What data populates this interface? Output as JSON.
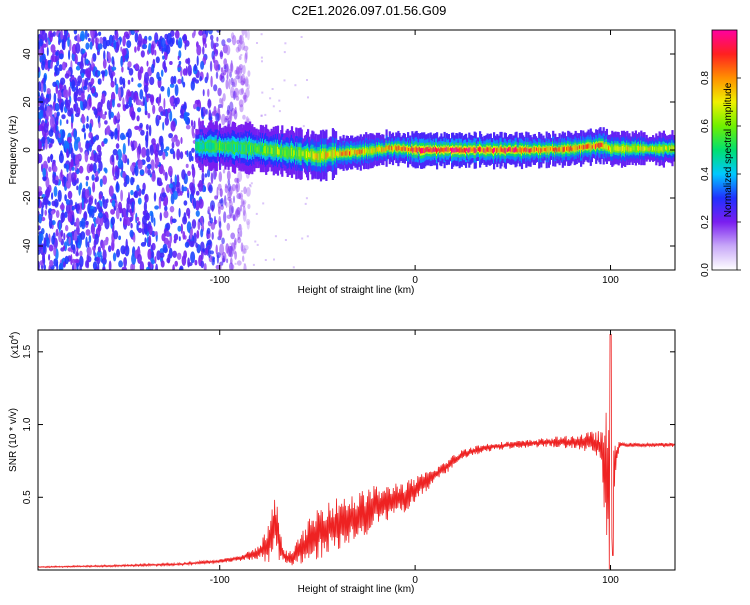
{
  "figure_title": "C2E1.2026.097.01.56.G09",
  "chart_data": [
    {
      "type": "heatmap",
      "title": "C2E1.2026.097.01.56.G09",
      "xlabel": "Height of straight line (km)",
      "ylabel": "Frequency (Hz)",
      "xlim": [
        -193,
        133
      ],
      "ylim": [
        -50,
        50
      ],
      "xticks": [
        -100,
        0,
        100
      ],
      "xtick_labels": [
        "-100",
        "0",
        "100"
      ],
      "yticks": [
        -40,
        -20,
        0,
        20,
        40
      ],
      "ytick_labels": [
        "-40",
        "-20",
        "0",
        "20",
        "40"
      ],
      "colorbar": {
        "label": "Normalized spectral amplitude",
        "range": [
          0,
          1
        ],
        "ticks": [
          0.0,
          0.2,
          0.4,
          0.6,
          0.8
        ],
        "tick_labels": [
          "0.0",
          "0.2",
          "0.4",
          "0.6",
          "0.8"
        ],
        "colors": [
          "#ffffff",
          "#c8a8f8",
          "#7a1ef0",
          "#2030ff",
          "#00c8ff",
          "#00e070",
          "#70f000",
          "#f0f000",
          "#ff9000",
          "#ff2020",
          "#ff00a0"
        ]
      },
      "ridge": {
        "x": [
          -112,
          -100,
          -90,
          -80,
          -70,
          -60,
          -50,
          -40,
          -30,
          -20,
          -10,
          0,
          20,
          40,
          60,
          80,
          95,
          100,
          133
        ],
        "frequency": [
          1.5,
          1.5,
          1.0,
          0.5,
          -0.5,
          -1.5,
          -2.5,
          -1.5,
          -1.0,
          0.0,
          1.0,
          0.0,
          0.0,
          0.0,
          0.0,
          0.5,
          2.0,
          0.5,
          0.5
        ],
        "amplitude": [
          0.45,
          0.55,
          0.5,
          0.55,
          0.6,
          0.6,
          0.7,
          0.75,
          0.8,
          0.7,
          0.8,
          0.9,
          0.95,
          0.9,
          0.85,
          0.8,
          0.85,
          0.7,
          0.65
        ]
      },
      "noise_region": {
        "x_start": -193,
        "x_end": -95,
        "amplitude_range": [
          0.05,
          0.25
        ]
      }
    },
    {
      "type": "line",
      "xlabel": "Height of straight line (km)",
      "ylabel": "SNR (10 * v/v)",
      "multiplier_label": "(x10",
      "multiplier_exponent": "4",
      "multiplier_close": ")",
      "xlim": [
        -193,
        133
      ],
      "ylim": [
        0,
        1.65
      ],
      "xticks": [
        -100,
        0,
        100
      ],
      "xtick_labels": [
        "-100",
        "0",
        "100"
      ],
      "yticks": [
        0.5,
        1.0,
        1.5
      ],
      "ytick_labels": [
        "0.5",
        "1.0",
        "1.5"
      ],
      "color": "#ee2222",
      "series": [
        {
          "name": "SNR",
          "x": [
            -193,
            -150,
            -120,
            -100,
            -90,
            -80,
            -75,
            -72,
            -70,
            -68,
            -65,
            -60,
            -55,
            -50,
            -45,
            -40,
            -35,
            -30,
            -25,
            -20,
            -15,
            -10,
            -5,
            0,
            5,
            10,
            15,
            20,
            25,
            30,
            40,
            50,
            60,
            70,
            80,
            90,
            95,
            97,
            99,
            100,
            101,
            103,
            105,
            110,
            120,
            133
          ],
          "y": [
            0.02,
            0.03,
            0.04,
            0.06,
            0.08,
            0.12,
            0.18,
            0.3,
            0.25,
            0.1,
            0.08,
            0.12,
            0.2,
            0.25,
            0.3,
            0.32,
            0.35,
            0.35,
            0.4,
            0.45,
            0.45,
            0.5,
            0.5,
            0.55,
            0.6,
            0.65,
            0.7,
            0.75,
            0.8,
            0.82,
            0.85,
            0.86,
            0.87,
            0.88,
            0.88,
            0.88,
            0.85,
            0.7,
            0.6,
            0.5,
            0.6,
            0.8,
            0.86,
            0.86,
            0.86,
            0.86
          ],
          "spread": [
            0.005,
            0.008,
            0.01,
            0.015,
            0.02,
            0.05,
            0.15,
            0.22,
            0.2,
            0.06,
            0.05,
            0.1,
            0.15,
            0.2,
            0.22,
            0.2,
            0.2,
            0.2,
            0.18,
            0.15,
            0.14,
            0.12,
            0.12,
            0.1,
            0.08,
            0.06,
            0.05,
            0.05,
            0.04,
            0.04,
            0.03,
            0.03,
            0.03,
            0.04,
            0.05,
            0.08,
            0.12,
            0.4,
            0.6,
            0.7,
            0.6,
            0.1,
            0.02,
            0.015,
            0.015,
            0.015
          ]
        }
      ],
      "spike": {
        "x": 100,
        "max": 1.62,
        "min": 0.1
      }
    }
  ]
}
